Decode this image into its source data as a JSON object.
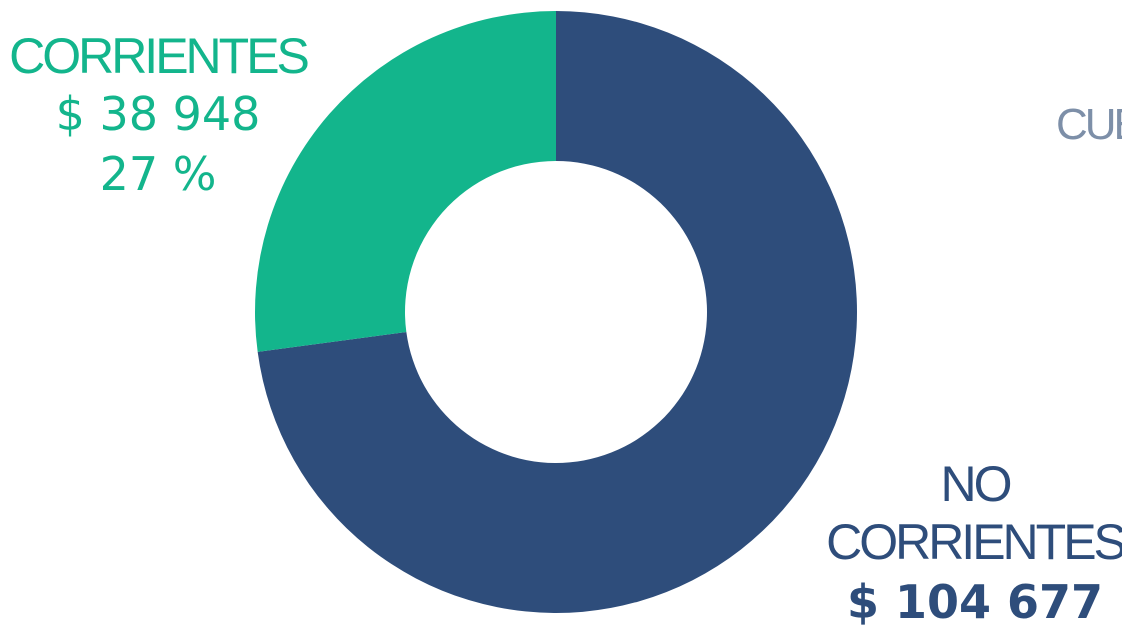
{
  "chart_data": {
    "type": "donut",
    "title": "",
    "slices": [
      {
        "name_lines": [
          "NO",
          "CORRIENTES"
        ],
        "value_label": "$ 104 677",
        "value": 104677,
        "color": "#2E4D7B"
      },
      {
        "name_lines": [
          "CORRIENTES"
        ],
        "value_label": "$ 38 948",
        "percent_label": "27 %",
        "value": 38948,
        "percent": 27,
        "color": "#13B58C"
      }
    ],
    "start": "12 o'clock",
    "direction": "clockwise"
  },
  "partial_label": {
    "text": "CUE",
    "color": "#7D8FA8"
  }
}
